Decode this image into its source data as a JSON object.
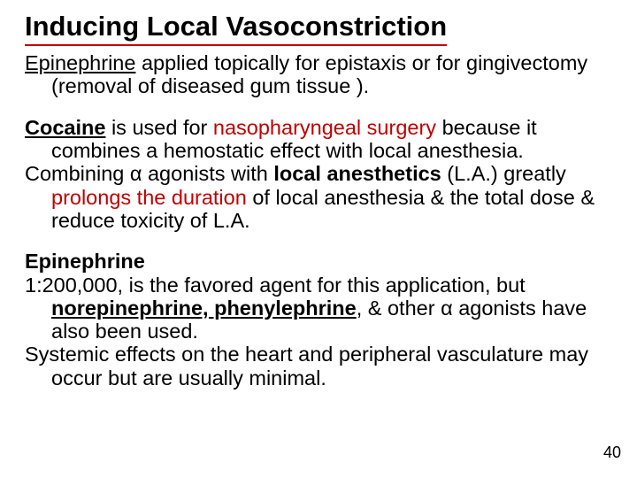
{
  "title": "Inducing Local Vasoconstriction",
  "p1a": "Epinephrine",
  "p1b": " applied topically for epistaxis or for gingivectomy (removal of diseased gum tissue ).",
  "p2a": "Cocaine",
  "p2b": " is used for ",
  "p2c": "nasopharyngeal surgery",
  "p2d": " because it combines a hemostatic effect with local anesthesia.",
  "p3a": "Combining  α agonists with ",
  "p3b": "local anesthetics",
  "p3c": " (L.A.) greatly ",
  "p3d": "prolongs the duration",
  "p3e": " of local anesthesia & the total dose & reduce toxicity of L.A.",
  "p4a": "Epinephrine",
  "p5a": "1:200,000, is the favored agent for this application, but ",
  "p5b": "norepinephrine, phenylephrine",
  "p5c": ", & other α  agonists have also been used.",
  "p6": "Systemic effects on the heart and peripheral vasculature may occur but are usually minimal.",
  "page": "40",
  "colors": {
    "accent": "#c00000",
    "text": "#000000",
    "bg": "#ffffff"
  }
}
